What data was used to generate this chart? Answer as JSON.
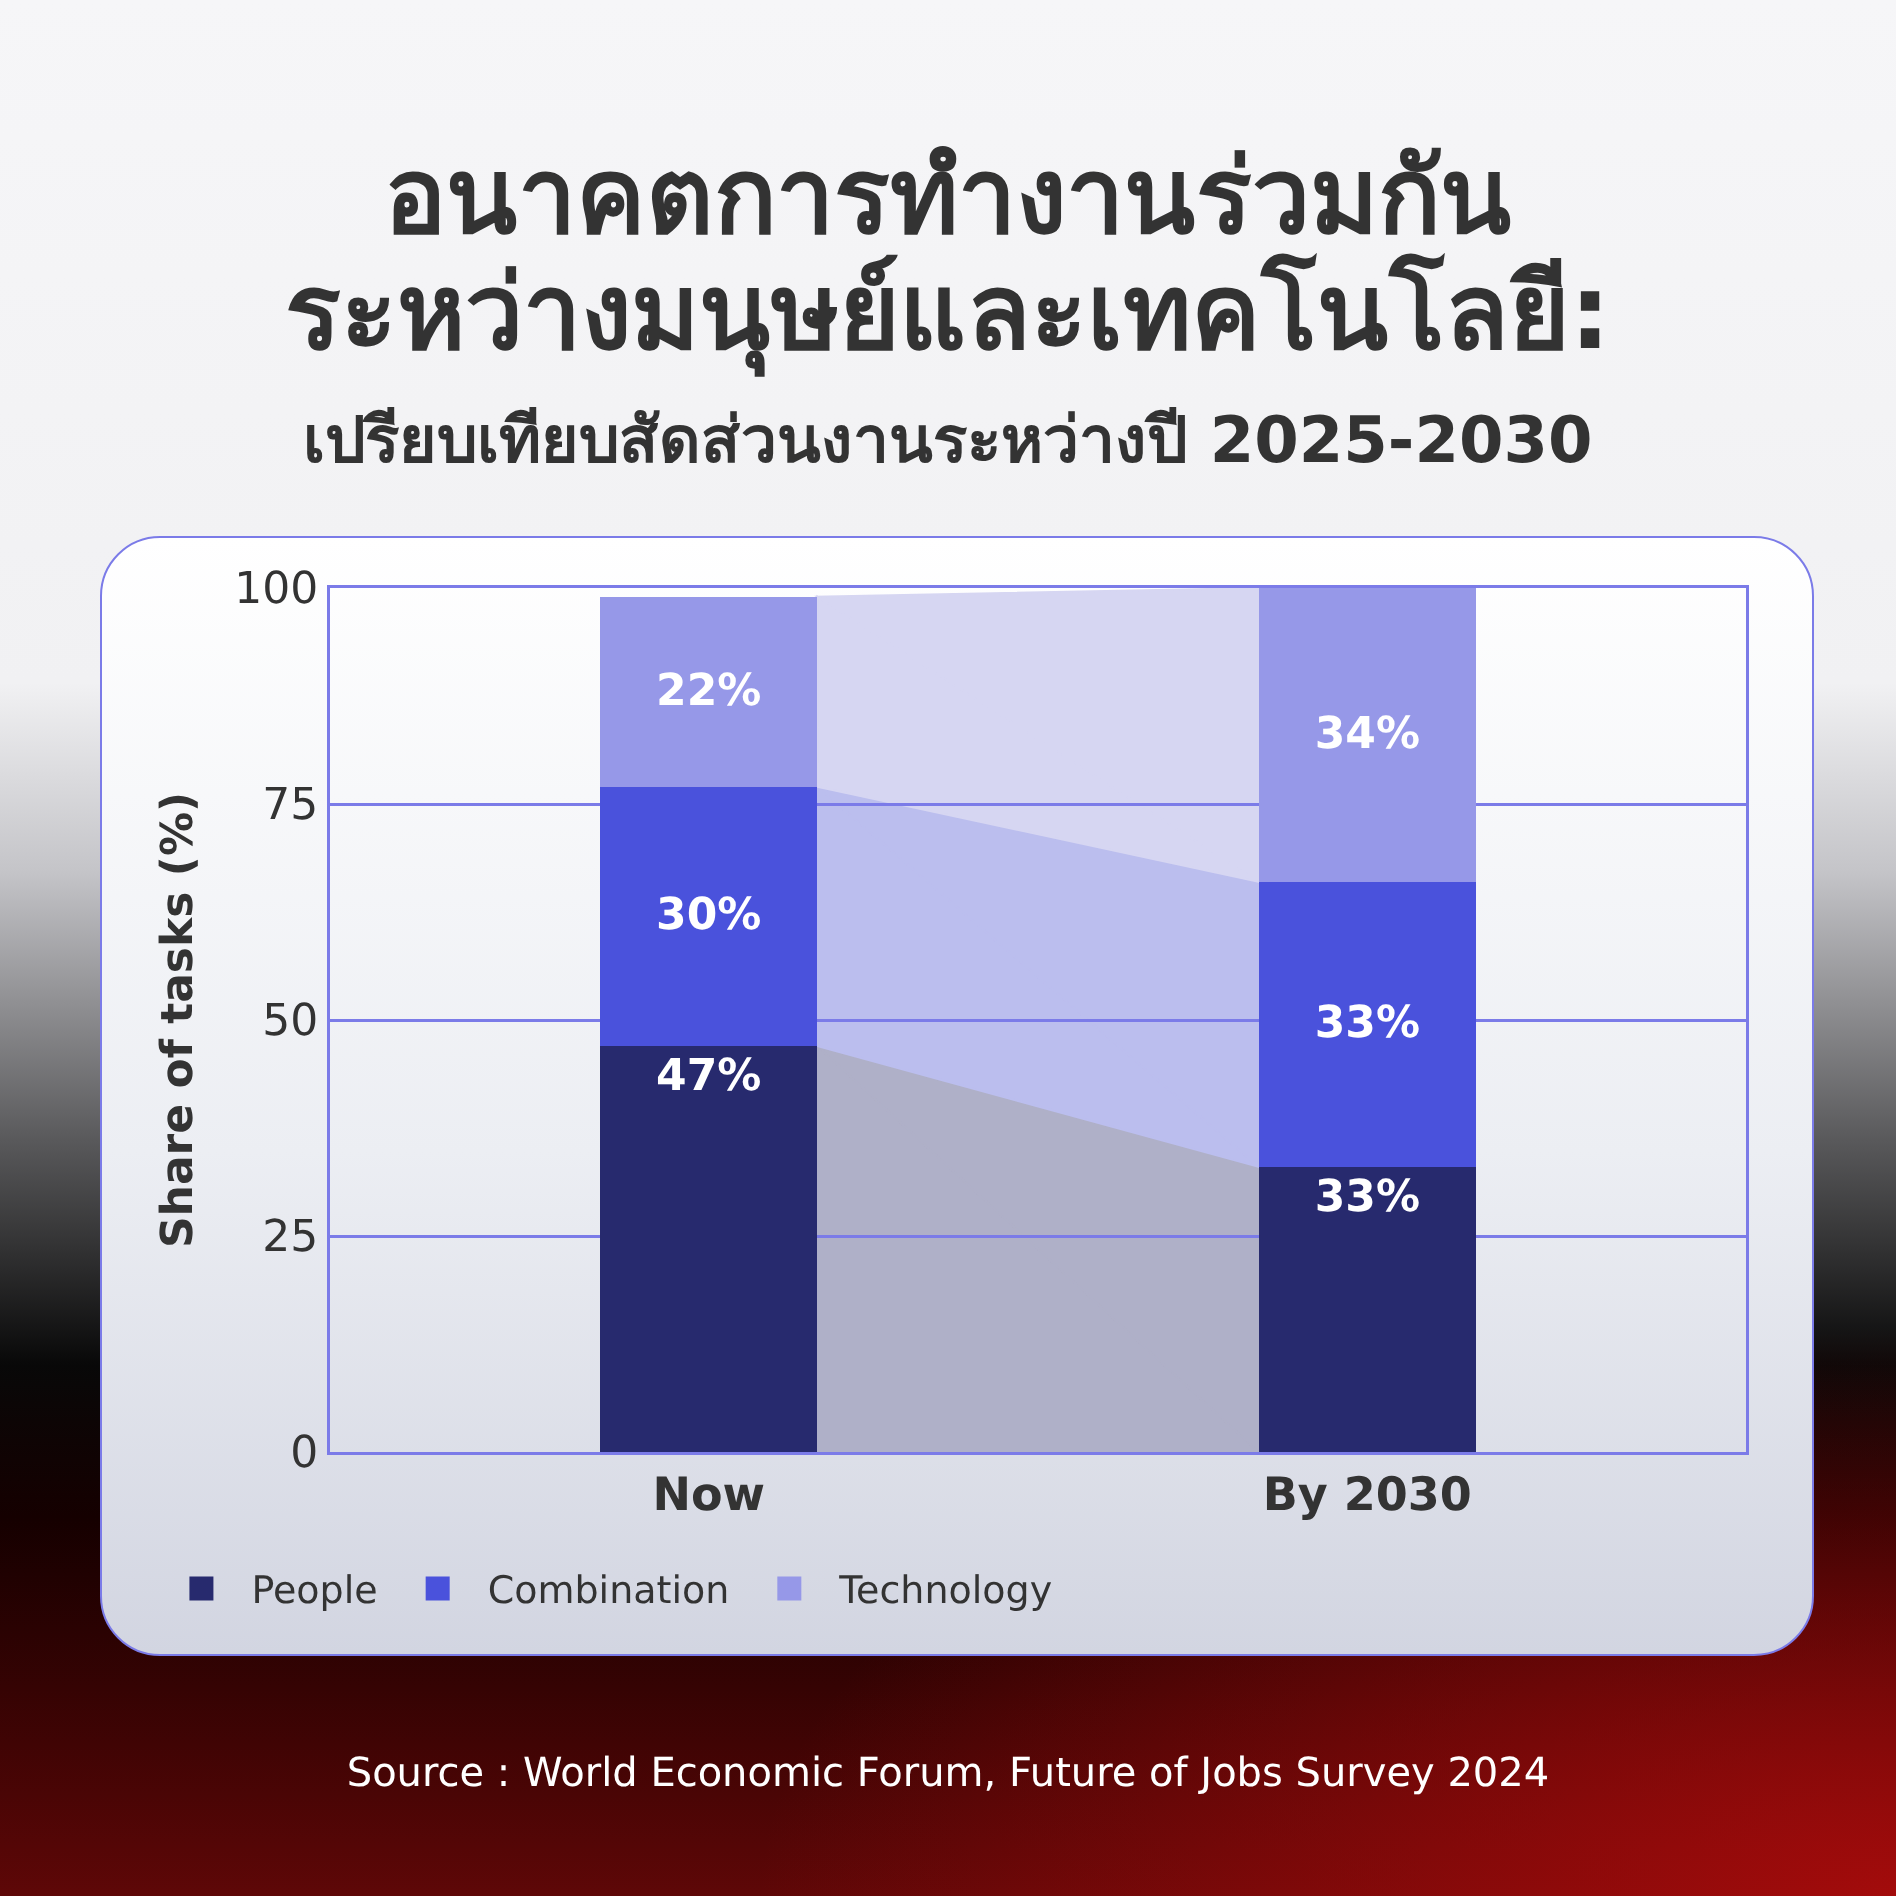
{
  "chart_data": {
    "type": "bar",
    "title": "อนาคตการทำงานร่วมกัน\nระหว่างมนุษย์และเทคโนโลยี:",
    "subtitle": "เปรียบเทียบสัดส่วนงานระหว่างปี 2025-2030",
    "ylabel": "Share of tasks (%)",
    "categories": [
      "Now",
      "By 2030"
    ],
    "stacked": true,
    "series": [
      {
        "name": "People",
        "color": "#272a6e",
        "values": [
          47,
          33
        ],
        "value_labels": [
          "47%",
          "33%"
        ]
      },
      {
        "name": "Combination",
        "color": "#4a52dc",
        "values": [
          30,
          33
        ],
        "value_labels": [
          "30%",
          "33%"
        ]
      },
      {
        "name": "Technology",
        "color": "#9698e8",
        "values": [
          22,
          34
        ],
        "value_labels": [
          "22%",
          "34%"
        ]
      }
    ],
    "ylim": [
      0,
      100
    ],
    "yticks": [
      0,
      25,
      50,
      75,
      100
    ],
    "grid": "y",
    "legend": "bottom left",
    "annotations": [
      "Source : World Economic Forum, Future of Jobs Survey 2024"
    ]
  }
}
